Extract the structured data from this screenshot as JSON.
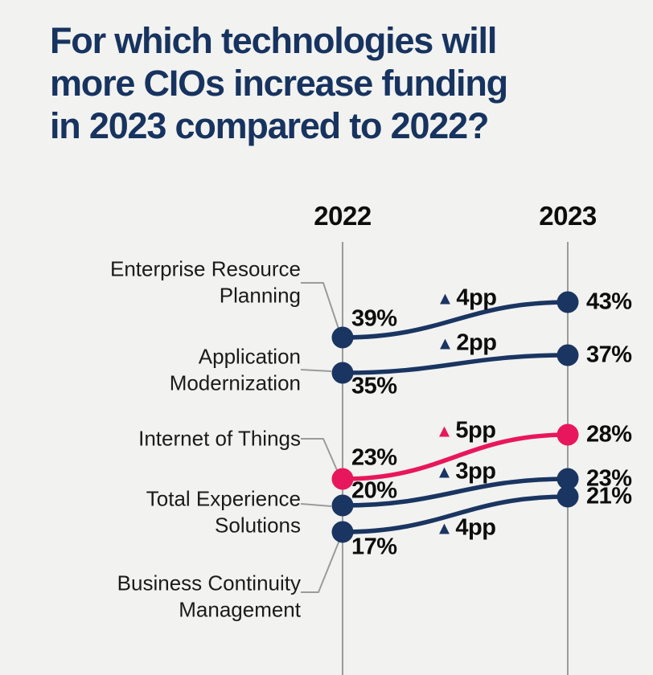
{
  "page": {
    "background": "#F2F2F1"
  },
  "chart_data": {
    "type": "line",
    "variant": "slopegraph",
    "title": "For which technologies will more CIOs increase funding in 2023 compared to 2022?",
    "title_lines": [
      "For which technologies will",
      "more CIOs increase funding",
      "in 2023 compared to 2022?"
    ],
    "columns": [
      "2022",
      "2023"
    ],
    "unit": "%",
    "layout_hints": {
      "grid": false,
      "legend": "none",
      "value_axis_visible": false,
      "column_axes": "vertical gray lines under year headers"
    },
    "colors": {
      "navy": "#1A3561",
      "pink": "#E8175D",
      "title_navy": "#17335F",
      "text_black": "#0D0D0D",
      "axis_gray": "#9B9B9B"
    },
    "series": [
      {
        "name": "Enterprise Resource Planning",
        "label_lines": [
          "Enterprise Resource",
          "Planning"
        ],
        "values": [
          39,
          43
        ],
        "display": [
          "39%",
          "43%"
        ],
        "delta": 4,
        "delta_glyph": "▲",
        "delta_display": "4pp",
        "color": "#1A3561",
        "highlight": false
      },
      {
        "name": "Application Modernization",
        "label_lines": [
          "Application",
          "Modernization"
        ],
        "values": [
          35,
          37
        ],
        "display": [
          "35%",
          "37%"
        ],
        "delta": 2,
        "delta_glyph": "▲",
        "delta_display": "2pp",
        "color": "#1A3561",
        "highlight": false
      },
      {
        "name": "Internet of Things",
        "label_lines": [
          "Internet of Things"
        ],
        "values": [
          23,
          28
        ],
        "display": [
          "23%",
          "28%"
        ],
        "delta": 5,
        "delta_glyph": "▲",
        "delta_display": "5pp",
        "color": "#E8175D",
        "highlight": true
      },
      {
        "name": "Total Experience Solutions",
        "label_lines": [
          "Total Experience",
          "Solutions"
        ],
        "values": [
          20,
          23
        ],
        "display": [
          "20%",
          "23%"
        ],
        "delta": 3,
        "delta_glyph": "▲",
        "delta_display": "3pp",
        "color": "#1A3561",
        "highlight": false
      },
      {
        "name": "Business Continuity Management",
        "label_lines": [
          "Business Continuity",
          "Management"
        ],
        "values": [
          17,
          21
        ],
        "display": [
          "17%",
          "21%"
        ],
        "delta": 4,
        "delta_glyph": "▲",
        "delta_display": "4pp",
        "color": "#1A3561",
        "highlight": false
      }
    ]
  }
}
